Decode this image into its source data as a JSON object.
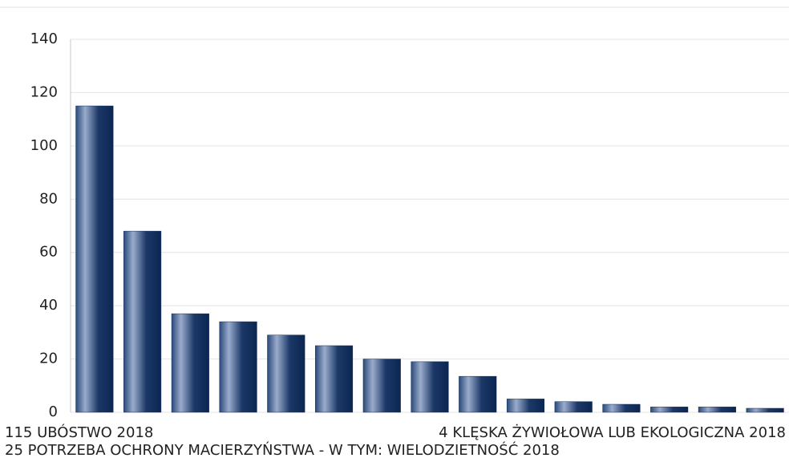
{
  "chart_data": {
    "type": "bar",
    "categories": [
      "115 UBÓSTWO 2018",
      null,
      null,
      null,
      null,
      "25 POTRZEBA OCHRONY MACIERZYŃSTWA - W TYM: WIELODZIETNOŚĆ 2018",
      null,
      null,
      null,
      null,
      "4 KLĘSKA ŻYWIOŁOWA LUB EKOLOGICZNA 2018",
      null,
      null,
      null,
      null
    ],
    "values": [
      115,
      68,
      37,
      34,
      29,
      25,
      20,
      19,
      13.5,
      5,
      4,
      3,
      2,
      2,
      1.5
    ],
    "color": "#0d2a5a",
    "ylim": [
      0,
      140
    ],
    "yticks": [
      0,
      20,
      40,
      60,
      80,
      100,
      120,
      140
    ],
    "grid": true
  }
}
